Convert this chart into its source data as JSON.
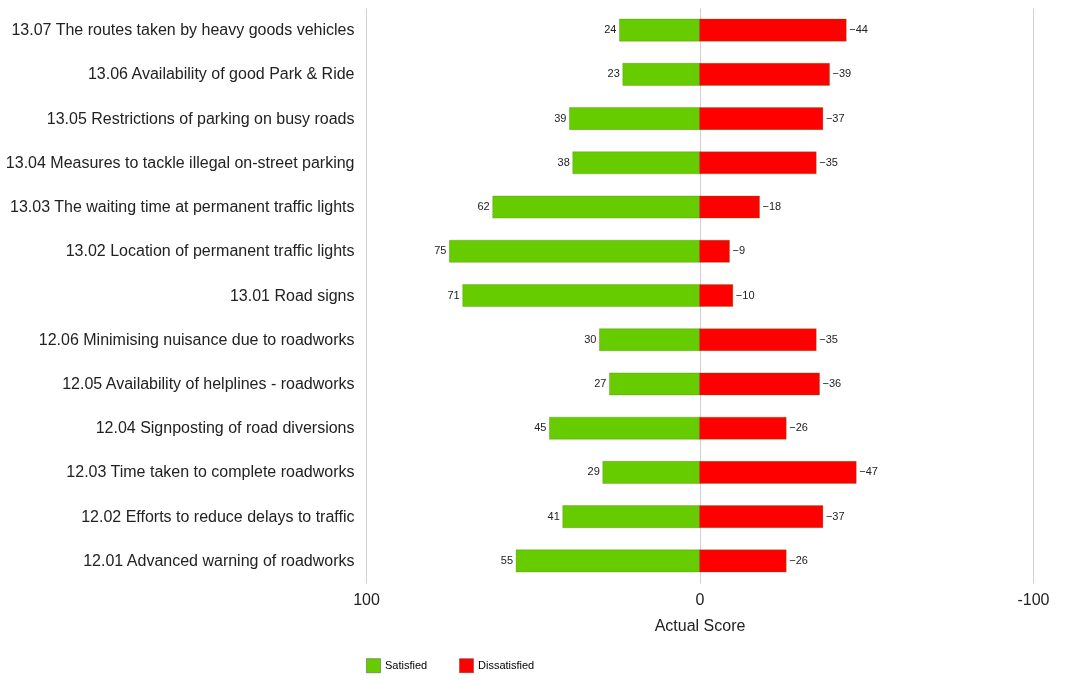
{
  "chart_data": {
    "type": "bar",
    "orientation": "horizontal",
    "stacked": true,
    "xlabel": "Actual Score",
    "categories": [
      "13.07 The routes taken by heavy goods vehicles",
      "13.06 Availability of good Park & Ride",
      "13.05 Restrictions of parking on busy roads",
      "13.04 Measures to tackle illegal on-street parking",
      "13.03 The waiting time at permanent traffic lights",
      "13.02 Location of permanent traffic lights",
      "13.01 Road signs",
      "12.06 Minimising nuisance due to roadworks",
      "12.05 Availability of helplines - roadworks",
      "12.04 Signposting of road diversions",
      "12.03 Time taken to complete roadworks",
      "12.02 Efforts to reduce delays to traffic",
      "12.01 Advanced warning of roadworks"
    ],
    "series": [
      {
        "name": "Satisfied",
        "color": "#66cc00",
        "values": [
          24,
          23,
          39,
          38,
          62,
          75,
          71,
          30,
          27,
          45,
          29,
          41,
          55
        ]
      },
      {
        "name": "Dissatisfied",
        "color": "#ff0000",
        "values": [
          -44,
          -39,
          -37,
          -35,
          -18,
          -9,
          -10,
          -35,
          -36,
          -26,
          -47,
          -37,
          -26
        ]
      }
    ],
    "xlim": [
      100,
      -100
    ],
    "xticks": [
      100,
      0,
      -100
    ],
    "grid": "x",
    "legend": "bottom",
    "data_labels": true
  }
}
